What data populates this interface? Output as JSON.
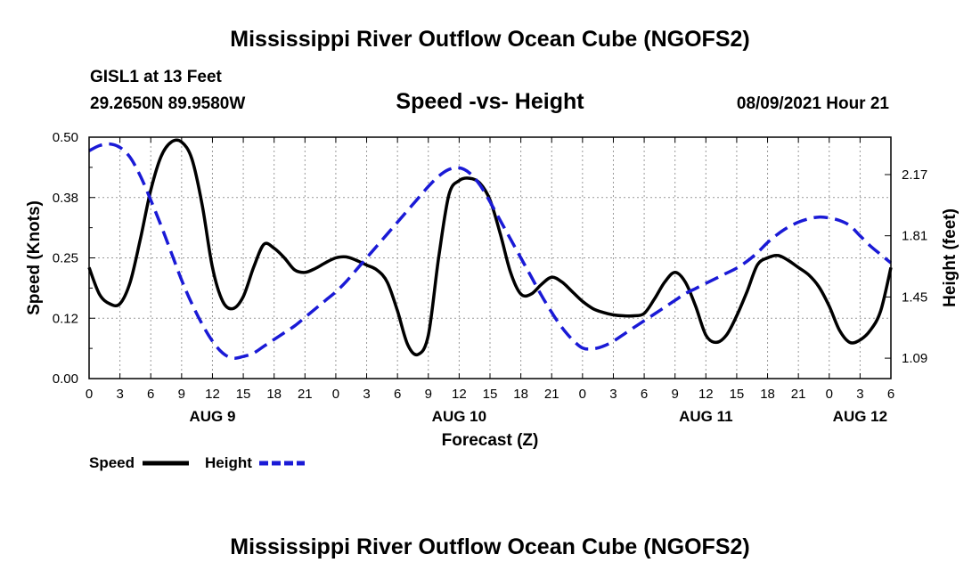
{
  "header": {
    "title": "Mississippi River Outflow Ocean Cube (NGOFS2)",
    "station": "GISL1 at 13 Feet",
    "coords": "29.2650N  89.9580W",
    "subtitle": "Speed -vs- Height",
    "timestamp": "08/09/2021 Hour 21"
  },
  "footer": {
    "title": "Mississippi River Outflow Ocean Cube (NGOFS2)"
  },
  "colors": {
    "speed": "#000000",
    "height": "#1a1ad6",
    "grid": "#999999"
  },
  "chart_data": {
    "type": "line",
    "title": "Speed -vs- Height",
    "xlabel": "Forecast (Z)",
    "ylabel": "Speed (Knots)",
    "y2label": "Height (feet)",
    "xlim": [
      0,
      78
    ],
    "ylim": [
      0,
      0.5
    ],
    "y2lim": [
      0.97,
      2.39
    ],
    "x_ticks": [
      0,
      3,
      6,
      9,
      12,
      15,
      18,
      21,
      24,
      27,
      30,
      33,
      36,
      39,
      42,
      45,
      48,
      51,
      54,
      57,
      60,
      63,
      66,
      69,
      72,
      75,
      78
    ],
    "x_tick_labels": [
      "0",
      "3",
      "6",
      "9",
      "12",
      "15",
      "18",
      "21",
      "0",
      "3",
      "6",
      "9",
      "12",
      "15",
      "18",
      "21",
      "0",
      "3",
      "6",
      "9",
      "12",
      "15",
      "18",
      "21",
      "0",
      "3",
      "6"
    ],
    "day_labels": [
      {
        "x": 12,
        "label": "AUG 9"
      },
      {
        "x": 36,
        "label": "AUG 10"
      },
      {
        "x": 60,
        "label": "AUG 11"
      },
      {
        "x": 75,
        "label": "AUG 12"
      }
    ],
    "y_ticks": [
      0,
      0.125,
      0.25,
      0.375,
      0.5
    ],
    "y_tick_labels": [
      "0.00",
      "0.12",
      "0.25",
      "0.38",
      "0.50"
    ],
    "y2_ticks": [
      1.09,
      1.45,
      1.81,
      2.17
    ],
    "y2_tick_labels": [
      "1.09",
      "1.45",
      "1.81",
      "2.17"
    ],
    "legend": [
      {
        "name": "Speed",
        "style": "solid"
      },
      {
        "name": "Height",
        "style": "dashed"
      }
    ],
    "series": [
      {
        "name": "Speed",
        "axis": "left",
        "style": "solid",
        "x": [
          0,
          1,
          2,
          3,
          4,
          5,
          6,
          7,
          8,
          9,
          10,
          11,
          12,
          13,
          14,
          15,
          16,
          17,
          18,
          19,
          20,
          21,
          22,
          23,
          24,
          25,
          26,
          27,
          28,
          29,
          30,
          31,
          32,
          33,
          34,
          35,
          36,
          37,
          38,
          39,
          40,
          41,
          42,
          43,
          44,
          45,
          46,
          47,
          48,
          49,
          50,
          51,
          52,
          53,
          54,
          55,
          56,
          57,
          58,
          59,
          60,
          61,
          62,
          63,
          64,
          65,
          66,
          67,
          68,
          69,
          70,
          71,
          72,
          73,
          74,
          75,
          76,
          77,
          78
        ],
        "values": [
          0.23,
          0.175,
          0.155,
          0.155,
          0.2,
          0.29,
          0.39,
          0.46,
          0.49,
          0.49,
          0.455,
          0.36,
          0.23,
          0.16,
          0.145,
          0.17,
          0.23,
          0.278,
          0.27,
          0.25,
          0.225,
          0.22,
          0.228,
          0.24,
          0.25,
          0.252,
          0.245,
          0.235,
          0.225,
          0.2,
          0.14,
          0.07,
          0.05,
          0.09,
          0.25,
          0.38,
          0.41,
          0.415,
          0.405,
          0.37,
          0.3,
          0.22,
          0.175,
          0.175,
          0.195,
          0.21,
          0.2,
          0.18,
          0.16,
          0.145,
          0.137,
          0.132,
          0.13,
          0.13,
          0.135,
          0.165,
          0.2,
          0.22,
          0.2,
          0.15,
          0.09,
          0.075,
          0.09,
          0.13,
          0.18,
          0.235,
          0.25,
          0.255,
          0.245,
          0.23,
          0.215,
          0.19,
          0.15,
          0.1,
          0.075,
          0.08,
          0.1,
          0.14,
          0.23
        ]
      },
      {
        "name": "Height",
        "axis": "right",
        "style": "dashed",
        "x": [
          0,
          1,
          2,
          3,
          4,
          5,
          6,
          7,
          8,
          9,
          10,
          11,
          12,
          13,
          14,
          15,
          16,
          17,
          18,
          19,
          20,
          21,
          22,
          23,
          24,
          25,
          26,
          27,
          28,
          29,
          30,
          31,
          32,
          33,
          34,
          35,
          36,
          37,
          38,
          39,
          40,
          41,
          42,
          43,
          44,
          45,
          46,
          47,
          48,
          49,
          50,
          51,
          52,
          53,
          54,
          55,
          56,
          57,
          58,
          59,
          60,
          61,
          62,
          63,
          64,
          65,
          66,
          67,
          68,
          69,
          70,
          71,
          72,
          73,
          74,
          75,
          76,
          77,
          78
        ],
        "values": [
          2.31,
          2.34,
          2.35,
          2.33,
          2.27,
          2.16,
          2.02,
          1.87,
          1.71,
          1.55,
          1.41,
          1.29,
          1.19,
          1.12,
          1.09,
          1.1,
          1.12,
          1.16,
          1.2,
          1.24,
          1.28,
          1.33,
          1.38,
          1.43,
          1.48,
          1.54,
          1.61,
          1.68,
          1.75,
          1.82,
          1.89,
          1.96,
          2.03,
          2.1,
          2.16,
          2.2,
          2.21,
          2.18,
          2.11,
          2.01,
          1.9,
          1.79,
          1.68,
          1.57,
          1.46,
          1.36,
          1.27,
          1.2,
          1.15,
          1.145,
          1.16,
          1.19,
          1.23,
          1.27,
          1.31,
          1.35,
          1.39,
          1.43,
          1.47,
          1.5,
          1.53,
          1.56,
          1.59,
          1.62,
          1.66,
          1.71,
          1.77,
          1.82,
          1.86,
          1.89,
          1.91,
          1.92,
          1.915,
          1.9,
          1.87,
          1.81,
          1.75,
          1.7,
          1.65
        ]
      }
    ]
  }
}
